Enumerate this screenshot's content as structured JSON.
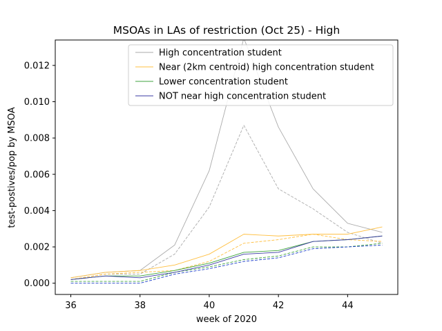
{
  "chart_data": {
    "type": "line",
    "title": "MSOAs in LAs of restriction (Oct 25) - High",
    "xlabel": "week of 2020",
    "ylabel": "test-postives/pop by MSOA",
    "xlim": [
      35.55,
      45.45
    ],
    "ylim": [
      -0.00062,
      0.0134
    ],
    "xticks": [
      36,
      38,
      40,
      42,
      44
    ],
    "xtick_labels": [
      "36",
      "38",
      "40",
      "42",
      "44"
    ],
    "yticks": [
      0.0,
      0.002,
      0.004,
      0.006,
      0.008,
      0.01,
      0.012
    ],
    "ytick_labels": [
      "0.000",
      "0.002",
      "0.004",
      "0.006",
      "0.008",
      "0.010",
      "0.012"
    ],
    "grid": false,
    "legend_position": "top-right",
    "x": [
      36,
      37,
      38,
      39,
      40,
      41,
      42,
      43,
      44,
      45
    ],
    "series": [
      {
        "name": "High concentration student",
        "color": "#aaaaaa",
        "style": "solid",
        "in_legend": true,
        "values": [
          0.0003,
          0.0006,
          0.0007,
          0.0021,
          0.0062,
          0.0135,
          0.0086,
          0.0052,
          0.0033,
          0.0028
        ]
      },
      {
        "name": "Near (2km centroid) high concentration student",
        "color": "#ffbf40",
        "style": "solid",
        "in_legend": true,
        "values": [
          0.0003,
          0.0006,
          0.0007,
          0.001,
          0.0016,
          0.0027,
          0.0026,
          0.0027,
          0.0027,
          0.0031
        ]
      },
      {
        "name": "Lower concentration student",
        "color": "#3ca33c",
        "style": "solid",
        "in_legend": true,
        "values": [
          0.0002,
          0.0004,
          0.0004,
          0.0007,
          0.0011,
          0.0017,
          0.0018,
          0.0023,
          0.0024,
          0.0026
        ]
      },
      {
        "name": "NOT near high concentration student",
        "color": "#3a3aa3",
        "style": "solid",
        "in_legend": true,
        "values": [
          0.0002,
          0.0004,
          0.0003,
          0.0006,
          0.001,
          0.0016,
          0.0017,
          0.0023,
          0.0024,
          0.0026
        ]
      },
      {
        "color": "#aaaaaa",
        "style": "dashed",
        "in_legend": false,
        "values": [
          0.0002,
          0.0005,
          0.0005,
          0.0016,
          0.0042,
          0.0087,
          0.0052,
          0.0041,
          0.0028,
          0.0022
        ]
      },
      {
        "color": "#ffbf40",
        "style": "dashed",
        "in_legend": false,
        "values": [
          0.0002,
          0.0005,
          0.0006,
          0.0007,
          0.0012,
          0.0022,
          0.0024,
          0.0027,
          0.0024,
          0.0023
        ]
      },
      {
        "color": "#3ca33c",
        "style": "dashed",
        "in_legend": false,
        "values": [
          0.0001,
          0.0001,
          0.0001,
          0.0006,
          0.0009,
          0.0013,
          0.0015,
          0.002,
          0.002,
          0.0022
        ]
      },
      {
        "color": "#1a3cc8",
        "style": "dashed",
        "in_legend": false,
        "values": [
          0.0,
          0.0,
          0.0,
          0.0005,
          0.0008,
          0.0012,
          0.0014,
          0.0019,
          0.002,
          0.0021
        ]
      }
    ]
  }
}
